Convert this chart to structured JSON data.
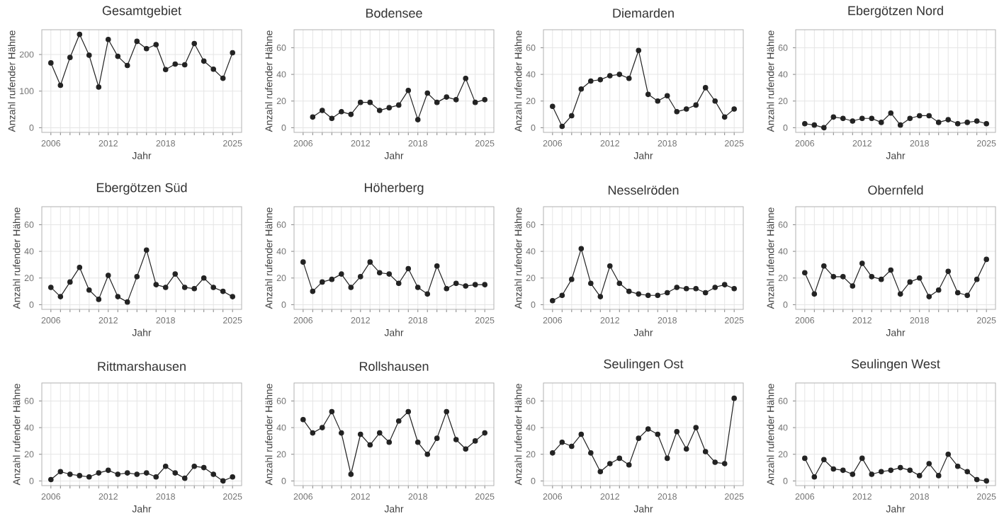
{
  "chart_data": [
    {
      "type": "line",
      "title": "Gesamtgebiet",
      "xlabel": "Jahr",
      "ylabel": "Anzahl rufender Hähne",
      "color": "#222222",
      "marker": "circle",
      "grid": true,
      "xlim": [
        2005.05,
        2025.95
      ],
      "ylim": [
        -12.75,
        267.75
      ],
      "xticks": [
        2006,
        {
          "value": 2007,
          "label": null
        },
        {
          "value": 2008,
          "label": null
        },
        {
          "value": 2009,
          "label": null
        },
        {
          "value": 2010,
          "label": null
        },
        {
          "value": 2011,
          "label": null
        },
        2012,
        {
          "value": 2013,
          "label": null
        },
        {
          "value": 2014,
          "label": null
        },
        {
          "value": 2015,
          "label": null
        },
        {
          "value": 2016,
          "label": null
        },
        {
          "value": 2017,
          "label": null
        },
        2018,
        {
          "value": 2019,
          "label": null
        },
        {
          "value": 2020,
          "label": null
        },
        {
          "value": 2021,
          "label": null
        },
        {
          "value": 2022,
          "label": null
        },
        {
          "value": 2023,
          "label": null
        },
        {
          "value": 2024,
          "label": null
        },
        2025
      ],
      "yticks": [
        0,
        100,
        200
      ],
      "x": [
        2006,
        2007,
        2008,
        2009,
        2010,
        2011,
        2012,
        2013,
        2014,
        2015,
        2016,
        2017,
        2018,
        2019,
        2020,
        2021,
        2022,
        2023,
        2024,
        2025
      ],
      "values": [
        177,
        116,
        192,
        255,
        198,
        111,
        241,
        195,
        170,
        236,
        216,
        227,
        159,
        174,
        172,
        230,
        182,
        160,
        135,
        205
      ]
    },
    {
      "type": "line",
      "title": "Bodensee",
      "xlabel": "Jahr",
      "ylabel": "Anzahl rufender Hähne",
      "color": "#222222",
      "marker": "circle",
      "grid": true,
      "xlim": [
        2005.05,
        2025.95
      ],
      "ylim": [
        -3.5,
        73.5
      ],
      "xticks": [
        2006,
        {
          "value": 2007,
          "label": null
        },
        {
          "value": 2008,
          "label": null
        },
        {
          "value": 2009,
          "label": null
        },
        {
          "value": 2010,
          "label": null
        },
        {
          "value": 2011,
          "label": null
        },
        2012,
        {
          "value": 2013,
          "label": null
        },
        {
          "value": 2014,
          "label": null
        },
        {
          "value": 2015,
          "label": null
        },
        {
          "value": 2016,
          "label": null
        },
        {
          "value": 2017,
          "label": null
        },
        2018,
        {
          "value": 2019,
          "label": null
        },
        {
          "value": 2020,
          "label": null
        },
        {
          "value": 2021,
          "label": null
        },
        {
          "value": 2022,
          "label": null
        },
        {
          "value": 2023,
          "label": null
        },
        {
          "value": 2024,
          "label": null
        },
        2025
      ],
      "yticks": [
        0,
        20,
        40,
        60
      ],
      "x": [
        2007,
        2008,
        2009,
        2010,
        2011,
        2012,
        2013,
        2014,
        2015,
        2016,
        2017,
        2018,
        2019,
        2020,
        2021,
        2022,
        2023,
        2024,
        2025
      ],
      "values": [
        8,
        13,
        7,
        12,
        10,
        19,
        19,
        13,
        15,
        17,
        28,
        6,
        26,
        19,
        23,
        21,
        37,
        19,
        21
      ]
    },
    {
      "type": "line",
      "title": "Diemarden",
      "xlabel": "Jahr",
      "ylabel": "Anzahl rufender Hähne",
      "color": "#222222",
      "marker": "circle",
      "grid": true,
      "xlim": [
        2005.05,
        2025.95
      ],
      "ylim": [
        -3.5,
        73.5
      ],
      "xticks": [
        2006,
        {
          "value": 2007,
          "label": null
        },
        {
          "value": 2008,
          "label": null
        },
        {
          "value": 2009,
          "label": null
        },
        {
          "value": 2010,
          "label": null
        },
        {
          "value": 2011,
          "label": null
        },
        2012,
        {
          "value": 2013,
          "label": null
        },
        {
          "value": 2014,
          "label": null
        },
        {
          "value": 2015,
          "label": null
        },
        {
          "value": 2016,
          "label": null
        },
        {
          "value": 2017,
          "label": null
        },
        2018,
        {
          "value": 2019,
          "label": null
        },
        {
          "value": 2020,
          "label": null
        },
        {
          "value": 2021,
          "label": null
        },
        {
          "value": 2022,
          "label": null
        },
        {
          "value": 2023,
          "label": null
        },
        {
          "value": 2024,
          "label": null
        },
        2025
      ],
      "yticks": [
        0,
        20,
        40,
        60
      ],
      "x": [
        2006,
        2007,
        2008,
        2009,
        2010,
        2011,
        2012,
        2013,
        2014,
        2015,
        2016,
        2017,
        2018,
        2019,
        2020,
        2021,
        2022,
        2023,
        2024,
        2025
      ],
      "values": [
        16,
        1,
        9,
        29,
        35,
        36,
        39,
        40,
        37,
        58,
        25,
        20,
        24,
        12,
        14,
        17,
        30,
        20,
        8,
        14
      ]
    },
    {
      "type": "line",
      "title": "Ebergötzen Nord",
      "xlabel": "Jahr",
      "ylabel": "Anzahl rufender Hähne",
      "color": "#222222",
      "marker": "circle",
      "grid": true,
      "xlim": [
        2005.05,
        2025.95
      ],
      "ylim": [
        -3.5,
        73.5
      ],
      "xticks": [
        2006,
        {
          "value": 2007,
          "label": null
        },
        {
          "value": 2008,
          "label": null
        },
        {
          "value": 2009,
          "label": null
        },
        {
          "value": 2010,
          "label": null
        },
        {
          "value": 2011,
          "label": null
        },
        2012,
        {
          "value": 2013,
          "label": null
        },
        {
          "value": 2014,
          "label": null
        },
        {
          "value": 2015,
          "label": null
        },
        {
          "value": 2016,
          "label": null
        },
        {
          "value": 2017,
          "label": null
        },
        2018,
        {
          "value": 2019,
          "label": null
        },
        {
          "value": 2020,
          "label": null
        },
        {
          "value": 2021,
          "label": null
        },
        {
          "value": 2022,
          "label": null
        },
        {
          "value": 2023,
          "label": null
        },
        {
          "value": 2024,
          "label": null
        },
        2025
      ],
      "yticks": [
        0,
        20,
        40,
        60
      ],
      "x": [
        2006,
        2007,
        2008,
        2009,
        2010,
        2011,
        2012,
        2013,
        2014,
        2015,
        2016,
        2017,
        2018,
        2019,
        2020,
        2021,
        2022,
        2023,
        2024,
        2025
      ],
      "values": [
        3,
        2,
        0,
        8,
        7,
        5,
        7,
        7,
        4,
        11,
        2,
        7,
        9,
        9,
        4,
        6,
        3,
        4,
        5,
        3
      ]
    },
    {
      "type": "line",
      "title": "Ebergötzen Süd",
      "xlabel": "Jahr",
      "ylabel": "Anzahl rufender Hähne",
      "color": "#222222",
      "marker": "circle",
      "grid": true,
      "xlim": [
        2005.05,
        2025.95
      ],
      "ylim": [
        -3.5,
        73.5
      ],
      "xticks": [
        2006,
        {
          "value": 2007,
          "label": null
        },
        {
          "value": 2008,
          "label": null
        },
        {
          "value": 2009,
          "label": null
        },
        {
          "value": 2010,
          "label": null
        },
        {
          "value": 2011,
          "label": null
        },
        2012,
        {
          "value": 2013,
          "label": null
        },
        {
          "value": 2014,
          "label": null
        },
        {
          "value": 2015,
          "label": null
        },
        {
          "value": 2016,
          "label": null
        },
        {
          "value": 2017,
          "label": null
        },
        2018,
        {
          "value": 2019,
          "label": null
        },
        {
          "value": 2020,
          "label": null
        },
        {
          "value": 2021,
          "label": null
        },
        {
          "value": 2022,
          "label": null
        },
        {
          "value": 2023,
          "label": null
        },
        {
          "value": 2024,
          "label": null
        },
        2025
      ],
      "yticks": [
        0,
        20,
        40,
        60
      ],
      "x": [
        2006,
        2007,
        2008,
        2009,
        2010,
        2011,
        2012,
        2013,
        2014,
        2015,
        2016,
        2017,
        2018,
        2019,
        2020,
        2021,
        2022,
        2023,
        2024,
        2025
      ],
      "values": [
        13,
        6,
        17,
        28,
        11,
        4,
        22,
        6,
        2,
        21,
        41,
        15,
        13,
        23,
        13,
        12,
        20,
        13,
        10,
        6
      ]
    },
    {
      "type": "line",
      "title": "Höherberg",
      "xlabel": "Jahr",
      "ylabel": "Anzahl rufender Hähne",
      "color": "#222222",
      "marker": "circle",
      "grid": true,
      "xlim": [
        2005.05,
        2025.95
      ],
      "ylim": [
        -3.5,
        73.5
      ],
      "xticks": [
        2006,
        {
          "value": 2007,
          "label": null
        },
        {
          "value": 2008,
          "label": null
        },
        {
          "value": 2009,
          "label": null
        },
        {
          "value": 2010,
          "label": null
        },
        {
          "value": 2011,
          "label": null
        },
        2012,
        {
          "value": 2013,
          "label": null
        },
        {
          "value": 2014,
          "label": null
        },
        {
          "value": 2015,
          "label": null
        },
        {
          "value": 2016,
          "label": null
        },
        {
          "value": 2017,
          "label": null
        },
        2018,
        {
          "value": 2019,
          "label": null
        },
        {
          "value": 2020,
          "label": null
        },
        {
          "value": 2021,
          "label": null
        },
        {
          "value": 2022,
          "label": null
        },
        {
          "value": 2023,
          "label": null
        },
        {
          "value": 2024,
          "label": null
        },
        2025
      ],
      "yticks": [
        0,
        20,
        40,
        60
      ],
      "x": [
        2006,
        2007,
        2008,
        2009,
        2010,
        2011,
        2012,
        2013,
        2014,
        2015,
        2016,
        2017,
        2018,
        2019,
        2020,
        2021,
        2022,
        2023,
        2024,
        2025
      ],
      "values": [
        32,
        10,
        17,
        19,
        23,
        13,
        21,
        32,
        24,
        23,
        16,
        27,
        13,
        8,
        29,
        12,
        16,
        14,
        15,
        15
      ]
    },
    {
      "type": "line",
      "title": "Nesselröden",
      "xlabel": "Jahr",
      "ylabel": "Anzahl rufender Hähne",
      "color": "#222222",
      "marker": "circle",
      "grid": true,
      "xlim": [
        2005.05,
        2025.95
      ],
      "ylim": [
        -3.5,
        73.5
      ],
      "xticks": [
        2006,
        {
          "value": 2007,
          "label": null
        },
        {
          "value": 2008,
          "label": null
        },
        {
          "value": 2009,
          "label": null
        },
        {
          "value": 2010,
          "label": null
        },
        {
          "value": 2011,
          "label": null
        },
        2012,
        {
          "value": 2013,
          "label": null
        },
        {
          "value": 2014,
          "label": null
        },
        {
          "value": 2015,
          "label": null
        },
        {
          "value": 2016,
          "label": null
        },
        {
          "value": 2017,
          "label": null
        },
        2018,
        {
          "value": 2019,
          "label": null
        },
        {
          "value": 2020,
          "label": null
        },
        {
          "value": 2021,
          "label": null
        },
        {
          "value": 2022,
          "label": null
        },
        {
          "value": 2023,
          "label": null
        },
        {
          "value": 2024,
          "label": null
        },
        2025
      ],
      "yticks": [
        0,
        20,
        40,
        60
      ],
      "x": [
        2006,
        2007,
        2008,
        2009,
        2010,
        2011,
        2012,
        2013,
        2014,
        2015,
        2016,
        2017,
        2018,
        2019,
        2020,
        2021,
        2022,
        2023,
        2024,
        2025
      ],
      "values": [
        3,
        7,
        19,
        42,
        16,
        6,
        29,
        16,
        10,
        8,
        7,
        7,
        9,
        13,
        12,
        12,
        9,
        13,
        15,
        12
      ]
    },
    {
      "type": "line",
      "title": "Obernfeld",
      "xlabel": "Jahr",
      "ylabel": "Anzahl rufender Hähne",
      "color": "#222222",
      "marker": "circle",
      "grid": true,
      "xlim": [
        2005.05,
        2025.95
      ],
      "ylim": [
        -3.5,
        73.5
      ],
      "xticks": [
        2006,
        {
          "value": 2007,
          "label": null
        },
        {
          "value": 2008,
          "label": null
        },
        {
          "value": 2009,
          "label": null
        },
        {
          "value": 2010,
          "label": null
        },
        {
          "value": 2011,
          "label": null
        },
        2012,
        {
          "value": 2013,
          "label": null
        },
        {
          "value": 2014,
          "label": null
        },
        {
          "value": 2015,
          "label": null
        },
        {
          "value": 2016,
          "label": null
        },
        {
          "value": 2017,
          "label": null
        },
        2018,
        {
          "value": 2019,
          "label": null
        },
        {
          "value": 2020,
          "label": null
        },
        {
          "value": 2021,
          "label": null
        },
        {
          "value": 2022,
          "label": null
        },
        {
          "value": 2023,
          "label": null
        },
        {
          "value": 2024,
          "label": null
        },
        2025
      ],
      "yticks": [
        0,
        20,
        40,
        60
      ],
      "x": [
        2006,
        2007,
        2008,
        2009,
        2010,
        2011,
        2012,
        2013,
        2014,
        2015,
        2016,
        2017,
        2018,
        2019,
        2020,
        2021,
        2022,
        2023,
        2024,
        2025
      ],
      "values": [
        24,
        8,
        29,
        21,
        21,
        14,
        31,
        21,
        19,
        26,
        8,
        17,
        20,
        6,
        11,
        25,
        9,
        7,
        19,
        34
      ]
    },
    {
      "type": "line",
      "title": "Rittmarshausen",
      "xlabel": "Jahr",
      "ylabel": "Anzahl rufender Hähne",
      "color": "#222222",
      "marker": "circle",
      "grid": true,
      "xlim": [
        2005.05,
        2025.95
      ],
      "ylim": [
        -3.5,
        73.5
      ],
      "xticks": [
        2006,
        {
          "value": 2007,
          "label": null
        },
        {
          "value": 2008,
          "label": null
        },
        {
          "value": 2009,
          "label": null
        },
        {
          "value": 2010,
          "label": null
        },
        {
          "value": 2011,
          "label": null
        },
        2012,
        {
          "value": 2013,
          "label": null
        },
        {
          "value": 2014,
          "label": null
        },
        {
          "value": 2015,
          "label": null
        },
        {
          "value": 2016,
          "label": null
        },
        {
          "value": 2017,
          "label": null
        },
        2018,
        {
          "value": 2019,
          "label": null
        },
        {
          "value": 2020,
          "label": null
        },
        {
          "value": 2021,
          "label": null
        },
        {
          "value": 2022,
          "label": null
        },
        {
          "value": 2023,
          "label": null
        },
        {
          "value": 2024,
          "label": null
        },
        2025
      ],
      "yticks": [
        0,
        20,
        40,
        60
      ],
      "x": [
        2006,
        2007,
        2008,
        2009,
        2010,
        2011,
        2012,
        2013,
        2014,
        2015,
        2016,
        2017,
        2018,
        2019,
        2020,
        2021,
        2022,
        2023,
        2024,
        2025
      ],
      "values": [
        1,
        7,
        5,
        4,
        3,
        6,
        8,
        5,
        6,
        5,
        6,
        3,
        11,
        6,
        2,
        11,
        10,
        5,
        0,
        3
      ]
    },
    {
      "type": "line",
      "title": "Rollshausen",
      "xlabel": "Jahr",
      "ylabel": "Anzahl rufender Hähne",
      "color": "#222222",
      "marker": "circle",
      "grid": true,
      "xlim": [
        2005.05,
        2025.95
      ],
      "ylim": [
        -3.5,
        73.5
      ],
      "xticks": [
        2006,
        {
          "value": 2007,
          "label": null
        },
        {
          "value": 2008,
          "label": null
        },
        {
          "value": 2009,
          "label": null
        },
        {
          "value": 2010,
          "label": null
        },
        {
          "value": 2011,
          "label": null
        },
        2012,
        {
          "value": 2013,
          "label": null
        },
        {
          "value": 2014,
          "label": null
        },
        {
          "value": 2015,
          "label": null
        },
        {
          "value": 2016,
          "label": null
        },
        {
          "value": 2017,
          "label": null
        },
        2018,
        {
          "value": 2019,
          "label": null
        },
        {
          "value": 2020,
          "label": null
        },
        {
          "value": 2021,
          "label": null
        },
        {
          "value": 2022,
          "label": null
        },
        {
          "value": 2023,
          "label": null
        },
        {
          "value": 2024,
          "label": null
        },
        2025
      ],
      "yticks": [
        0,
        20,
        40,
        60
      ],
      "x": [
        2006,
        2007,
        2008,
        2009,
        2010,
        2011,
        2012,
        2013,
        2014,
        2015,
        2016,
        2017,
        2018,
        2019,
        2020,
        2021,
        2022,
        2023,
        2024,
        2025
      ],
      "values": [
        46,
        36,
        40,
        52,
        36,
        5,
        35,
        27,
        36,
        29,
        45,
        52,
        29,
        20,
        32,
        52,
        31,
        24,
        30,
        36
      ]
    },
    {
      "type": "line",
      "title": "Seulingen Ost",
      "xlabel": "Jahr",
      "ylabel": "Anzahl rufender Hähne",
      "color": "#222222",
      "marker": "circle",
      "grid": true,
      "xlim": [
        2005.05,
        2025.95
      ],
      "ylim": [
        -3.5,
        73.5
      ],
      "xticks": [
        2006,
        {
          "value": 2007,
          "label": null
        },
        {
          "value": 2008,
          "label": null
        },
        {
          "value": 2009,
          "label": null
        },
        {
          "value": 2010,
          "label": null
        },
        {
          "value": 2011,
          "label": null
        },
        2012,
        {
          "value": 2013,
          "label": null
        },
        {
          "value": 2014,
          "label": null
        },
        {
          "value": 2015,
          "label": null
        },
        {
          "value": 2016,
          "label": null
        },
        {
          "value": 2017,
          "label": null
        },
        2018,
        {
          "value": 2019,
          "label": null
        },
        {
          "value": 2020,
          "label": null
        },
        {
          "value": 2021,
          "label": null
        },
        {
          "value": 2022,
          "label": null
        },
        {
          "value": 2023,
          "label": null
        },
        {
          "value": 2024,
          "label": null
        },
        2025
      ],
      "yticks": [
        0,
        20,
        40,
        60
      ],
      "x": [
        2006,
        2007,
        2008,
        2009,
        2010,
        2011,
        2012,
        2013,
        2014,
        2015,
        2016,
        2017,
        2018,
        2019,
        2020,
        2021,
        2022,
        2023,
        2024,
        2025
      ],
      "values": [
        21,
        29,
        26,
        35,
        21,
        7,
        13,
        17,
        12,
        32,
        39,
        35,
        17,
        37,
        24,
        40,
        22,
        14,
        13,
        62
      ]
    },
    {
      "type": "line",
      "title": "Seulingen West",
      "xlabel": "Jahr",
      "ylabel": "Anzahl rufender Hähne",
      "color": "#222222",
      "marker": "circle",
      "grid": true,
      "xlim": [
        2005.05,
        2025.95
      ],
      "ylim": [
        -3.5,
        73.5
      ],
      "xticks": [
        2006,
        {
          "value": 2007,
          "label": null
        },
        {
          "value": 2008,
          "label": null
        },
        {
          "value": 2009,
          "label": null
        },
        {
          "value": 2010,
          "label": null
        },
        {
          "value": 2011,
          "label": null
        },
        2012,
        {
          "value": 2013,
          "label": null
        },
        {
          "value": 2014,
          "label": null
        },
        {
          "value": 2015,
          "label": null
        },
        {
          "value": 2016,
          "label": null
        },
        {
          "value": 2017,
          "label": null
        },
        2018,
        {
          "value": 2019,
          "label": null
        },
        {
          "value": 2020,
          "label": null
        },
        {
          "value": 2021,
          "label": null
        },
        {
          "value": 2022,
          "label": null
        },
        {
          "value": 2023,
          "label": null
        },
        {
          "value": 2024,
          "label": null
        },
        2025
      ],
      "yticks": [
        0,
        20,
        40,
        60
      ],
      "x": [
        2006,
        2007,
        2008,
        2009,
        2010,
        2011,
        2012,
        2013,
        2014,
        2015,
        2016,
        2017,
        2018,
        2019,
        2020,
        2021,
        2022,
        2023,
        2024,
        2025
      ],
      "values": [
        17,
        3,
        16,
        9,
        8,
        5,
        17,
        5,
        7,
        8,
        10,
        8,
        4,
        13,
        4,
        20,
        11,
        7,
        1,
        0
      ]
    }
  ]
}
